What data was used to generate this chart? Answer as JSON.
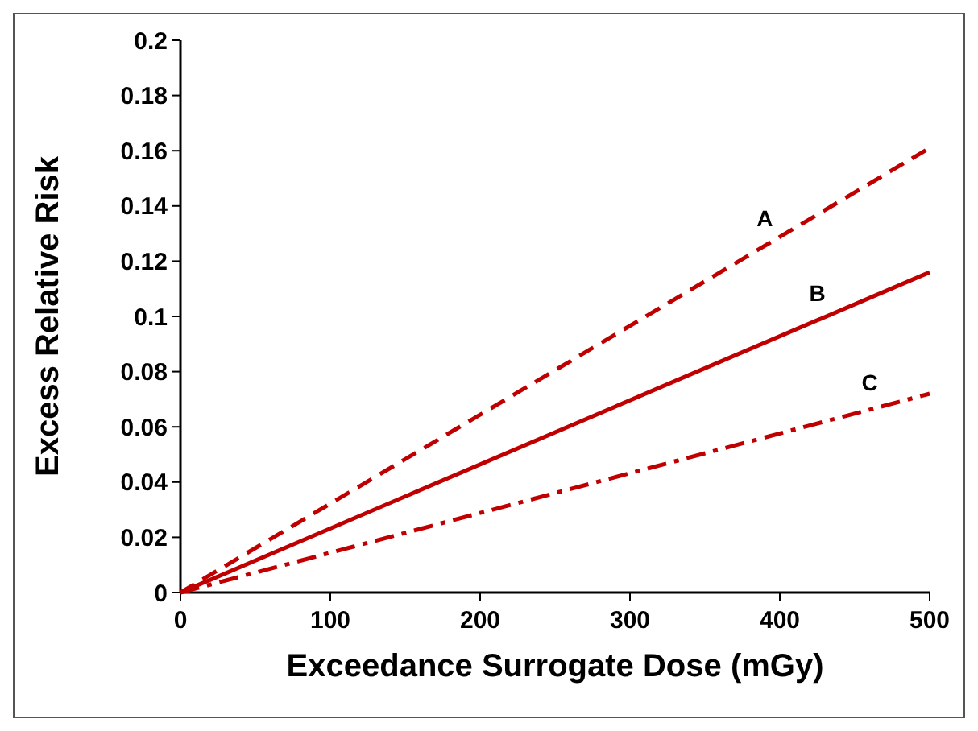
{
  "chart_data": {
    "type": "line",
    "xlabel": "Exceedance Surrogate Dose (mGy)",
    "ylabel": "Excess Relative Risk",
    "x": [
      0,
      500
    ],
    "series": [
      {
        "name": "A",
        "color": "#c00000",
        "values": [
          0,
          0.161
        ],
        "line_style": "dashed"
      },
      {
        "name": "B",
        "color": "#c00000",
        "values": [
          0,
          0.116
        ],
        "line_style": "solid"
      },
      {
        "name": "C",
        "color": "#c00000",
        "values": [
          0,
          0.072
        ],
        "line_style": "dashdot"
      }
    ],
    "xlim": [
      0,
      500
    ],
    "xticks": [
      0,
      100,
      200,
      300,
      400,
      500
    ],
    "ylim": [
      0,
      0.2
    ],
    "yticks": [
      0,
      0.02,
      0.04,
      0.06,
      0.08,
      0.1,
      0.12,
      0.14,
      0.16,
      0.18,
      0.2
    ],
    "grid": false,
    "marker": "none"
  }
}
